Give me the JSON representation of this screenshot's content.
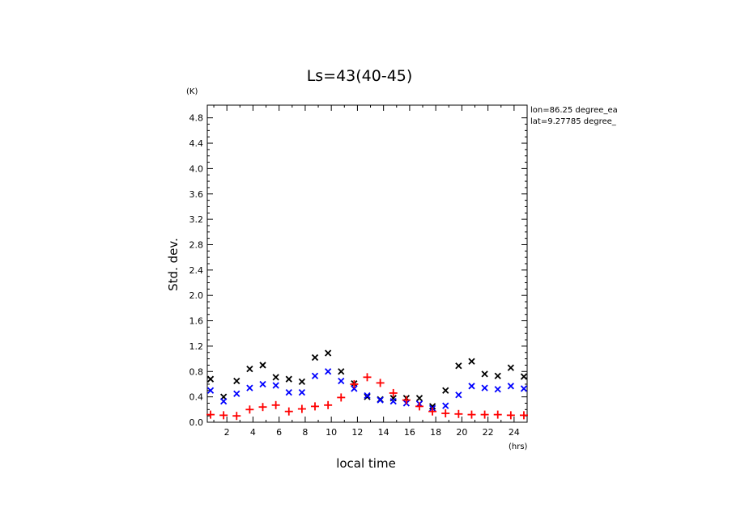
{
  "chart_data": {
    "type": "scatter",
    "title": "Ls=43(40-45)",
    "xlabel": "local time",
    "ylabel": "Std. dev.",
    "x_unit": "(hrs)",
    "y_unit": "(K)",
    "xlim": [
      0.5,
      25
    ],
    "ylim": [
      0,
      5.0
    ],
    "xticks": [
      2,
      4,
      6,
      8,
      10,
      12,
      14,
      16,
      18,
      20,
      22,
      24
    ],
    "yticks": [
      0.0,
      0.4,
      0.8,
      1.2,
      1.6,
      2.0,
      2.4,
      2.8,
      3.2,
      3.6,
      4.0,
      4.4,
      4.8
    ],
    "ytick_labels": [
      "0.0",
      "0.4",
      "0.8",
      "1.2",
      "1.6",
      "2.0",
      "2.4",
      "2.8",
      "3.2",
      "3.6",
      "4.0",
      "4.4",
      "4.8"
    ],
    "annotations": [
      "lon=86.25 degree_ea",
      "lat=9.27785 degree_"
    ],
    "x": [
      0.75,
      1.75,
      2.75,
      3.75,
      4.75,
      5.75,
      6.75,
      7.75,
      8.75,
      9.75,
      10.75,
      11.75,
      12.75,
      13.75,
      14.75,
      15.75,
      16.75,
      17.75,
      18.75,
      19.75,
      20.75,
      21.75,
      22.75,
      23.75,
      24.75
    ],
    "series": [
      {
        "marker": "x",
        "color": "#000000",
        "values": [
          0.68,
          0.4,
          0.65,
          0.84,
          0.9,
          0.71,
          0.68,
          0.64,
          1.02,
          1.09,
          0.8,
          0.61,
          0.4,
          0.36,
          0.38,
          0.38,
          0.38,
          0.25,
          0.5,
          0.89,
          0.96,
          0.76,
          0.73,
          0.86,
          0.72
        ]
      },
      {
        "marker": "x",
        "color": "#0000ff",
        "values": [
          0.5,
          0.33,
          0.45,
          0.54,
          0.6,
          0.58,
          0.47,
          0.47,
          0.73,
          0.8,
          0.65,
          0.53,
          0.42,
          0.35,
          0.33,
          0.3,
          0.29,
          0.22,
          0.26,
          0.43,
          0.57,
          0.54,
          0.52,
          0.57,
          0.53
        ]
      },
      {
        "marker": "+",
        "color": "#ff0000",
        "values": [
          0.12,
          0.11,
          0.1,
          0.2,
          0.24,
          0.27,
          0.17,
          0.21,
          0.25,
          0.27,
          0.39,
          0.6,
          0.71,
          0.62,
          0.46,
          0.35,
          0.25,
          0.17,
          0.14,
          0.13,
          0.12,
          0.12,
          0.12,
          0.11,
          0.11
        ]
      }
    ]
  }
}
